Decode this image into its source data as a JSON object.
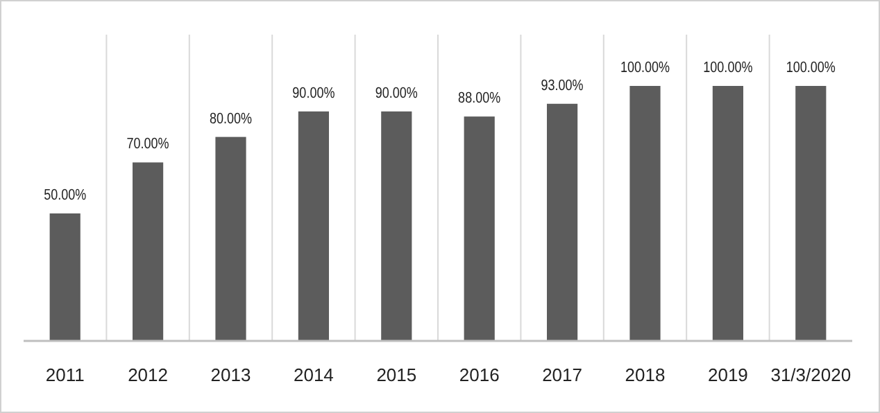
{
  "chart_data": {
    "type": "bar",
    "categories": [
      "2011",
      "2012",
      "2013",
      "2014",
      "2015",
      "2016",
      "2017",
      "2018",
      "2019",
      "31/3/2020"
    ],
    "values": [
      50,
      70,
      80,
      90,
      90,
      88,
      93,
      100,
      100,
      100
    ],
    "value_labels": [
      "50.00%",
      "70.00%",
      "80.00%",
      "90.00%",
      "90.00%",
      "88.00%",
      "93.00%",
      "100.00%",
      "100.00%",
      "100.00%"
    ],
    "color": "#5c5c5c",
    "grid": "x"
  }
}
